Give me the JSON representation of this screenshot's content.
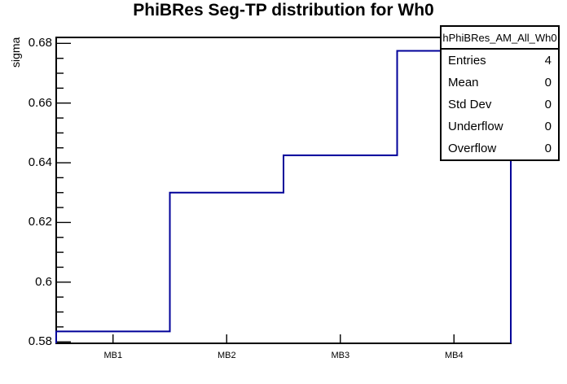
{
  "chart_data": {
    "type": "line",
    "style": "step-histogram",
    "title": "PhiBRes Seg-TP distribution for Wh0",
    "xlabel": "",
    "ylabel": "sigma",
    "categories": [
      "MB1",
      "MB2",
      "MB3",
      "MB4"
    ],
    "values": [
      0.5835,
      0.63,
      0.6425,
      0.6775
    ],
    "ylim": [
      0.5795,
      0.682
    ],
    "y_major_ticks": [
      0.58,
      0.6,
      0.62,
      0.64,
      0.66,
      0.68
    ],
    "y_tick_labels": [
      "0.58",
      "0.6",
      "0.62",
      "0.64",
      "0.66",
      "0.68"
    ],
    "y_minor_tick_step": 0.005,
    "grid": false,
    "legend_position": "none",
    "line_color": "#000099",
    "frame_color": "#000000",
    "background_color": "#ffffff"
  },
  "stats_box": {
    "header": "hPhiBRes_AM_All_Wh0",
    "rows": [
      {
        "label": "Entries",
        "value": "4"
      },
      {
        "label": "Mean",
        "value": "0"
      },
      {
        "label": "Std Dev",
        "value": "0"
      },
      {
        "label": "Underflow",
        "value": "0"
      },
      {
        "label": "Overflow",
        "value": "0"
      }
    ]
  }
}
